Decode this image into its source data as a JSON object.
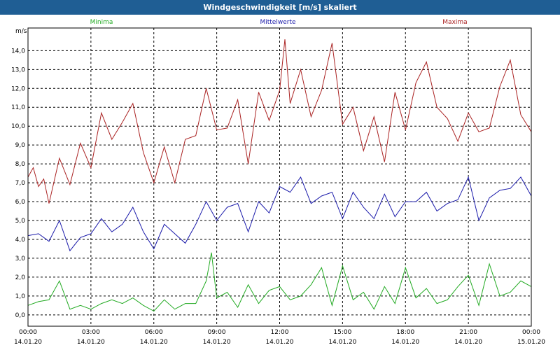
{
  "window": {
    "title": "Windgeschwindigkeit [m/s] skaliert"
  },
  "colors": {
    "minima": "#22aa22",
    "mittel": "#1a1aaa",
    "maxima": "#aa2222",
    "title_bg": "#1f5e94"
  },
  "chart_data": {
    "type": "line",
    "title": "Windgeschwindigkeit [m/s] skaliert",
    "ylabel": "m/s",
    "ylim": [
      -0.6,
      15.2
    ],
    "y_ticks": [
      "0,0",
      "1,0",
      "2,0",
      "3,0",
      "4,0",
      "5,0",
      "6,0",
      "7,0",
      "8,0",
      "9,0",
      "10,0",
      "11,0",
      "12,0",
      "13,0",
      "14,0"
    ],
    "x_ticks": [
      {
        "time": "00:00",
        "date": "14.01.20"
      },
      {
        "time": "03:00",
        "date": "14.01.20"
      },
      {
        "time": "06:00",
        "date": "14.01.20"
      },
      {
        "time": "09:00",
        "date": "14.01.20"
      },
      {
        "time": "12:00",
        "date": "14.01.20"
      },
      {
        "time": "15:00",
        "date": "14.01.20"
      },
      {
        "time": "18:00",
        "date": "14.01.20"
      },
      {
        "time": "21:00",
        "date": "14.01.20"
      },
      {
        "time": "00:00",
        "date": "15.01.20"
      }
    ],
    "x_range_hours": [
      0,
      24
    ],
    "grid": true,
    "legend": "top",
    "series": [
      {
        "name": "Minima",
        "hours": [
          0,
          0.5,
          1,
          1.5,
          2,
          2.5,
          3,
          3.5,
          4,
          4.5,
          5,
          5.5,
          6,
          6.5,
          7,
          7.5,
          8,
          8.5,
          8.75,
          9,
          9.5,
          10,
          10.5,
          11,
          11.5,
          12,
          12.5,
          13,
          13.5,
          14,
          14.5,
          15,
          15.5,
          16,
          16.5,
          17,
          17.5,
          18,
          18.5,
          19,
          19.5,
          20,
          20.5,
          21,
          21.5,
          22,
          22.5,
          23,
          23.5,
          24
        ],
        "values": [
          0.5,
          0.7,
          0.8,
          1.8,
          0.3,
          0.5,
          0.3,
          0.6,
          0.8,
          0.6,
          0.9,
          0.5,
          0.2,
          0.8,
          0.3,
          0.6,
          0.6,
          1.8,
          3.3,
          0.9,
          1.2,
          0.4,
          1.6,
          0.6,
          1.3,
          1.5,
          0.8,
          1.0,
          1.6,
          2.5,
          0.5,
          2.6,
          0.8,
          1.2,
          0.3,
          1.5,
          0.6,
          2.5,
          0.9,
          1.4,
          0.6,
          0.8,
          1.5,
          2.1,
          0.5,
          2.7,
          1.0,
          1.2,
          1.8,
          1.5
        ]
      },
      {
        "name": "Mittelwerte",
        "hours": [
          0,
          0.5,
          1,
          1.5,
          2,
          2.5,
          3,
          3.5,
          4,
          4.5,
          5,
          5.5,
          6,
          6.5,
          7,
          7.5,
          8,
          8.5,
          9,
          9.5,
          10,
          10.5,
          11,
          11.5,
          12,
          12.5,
          13,
          13.5,
          14,
          14.5,
          15,
          15.5,
          16,
          16.5,
          17,
          17.5,
          18,
          18.5,
          19,
          19.5,
          20,
          20.5,
          21,
          21.5,
          22,
          22.5,
          23,
          23.5,
          24
        ],
        "values": [
          4.2,
          4.3,
          3.9,
          5.0,
          3.4,
          4.1,
          4.3,
          5.1,
          4.4,
          4.8,
          5.7,
          4.4,
          3.5,
          4.8,
          4.3,
          3.8,
          4.8,
          6.0,
          5.0,
          5.7,
          5.9,
          4.4,
          6.0,
          5.4,
          6.8,
          6.5,
          7.3,
          5.9,
          6.3,
          6.5,
          5.1,
          6.5,
          5.7,
          5.1,
          6.4,
          5.2,
          6.0,
          6.0,
          6.5,
          5.5,
          5.9,
          6.1,
          7.3,
          5.0,
          6.2,
          6.6,
          6.7,
          7.3,
          6.3
        ]
      },
      {
        "name": "Maxima",
        "hours": [
          0,
          0.25,
          0.5,
          0.75,
          1,
          1.5,
          2,
          2.5,
          3,
          3.5,
          4,
          4.5,
          5,
          5.5,
          6,
          6.5,
          7,
          7.5,
          8,
          8.5,
          9,
          9.5,
          10,
          10.5,
          11,
          11.5,
          12,
          12.25,
          12.5,
          13,
          13.5,
          14,
          14.5,
          15,
          15.5,
          16,
          16.5,
          17,
          17.5,
          18,
          18.5,
          19,
          19.5,
          20,
          20.5,
          21,
          21.5,
          22,
          22.5,
          23,
          23.5,
          24
        ],
        "values": [
          7.3,
          7.8,
          6.8,
          7.2,
          5.9,
          8.3,
          6.9,
          9.1,
          7.8,
          10.7,
          9.3,
          10.2,
          11.2,
          8.6,
          7.0,
          8.9,
          7.0,
          9.3,
          9.5,
          12.0,
          9.8,
          9.9,
          11.4,
          8.0,
          11.8,
          10.3,
          11.9,
          14.6,
          11.2,
          13.0,
          10.5,
          11.9,
          14.4,
          10.1,
          11.0,
          8.7,
          10.5,
          8.1,
          11.8,
          9.8,
          12.3,
          13.4,
          11.0,
          10.4,
          9.2,
          10.7,
          9.7,
          9.9,
          12.1,
          13.5,
          10.6,
          9.7
        ]
      }
    ]
  }
}
